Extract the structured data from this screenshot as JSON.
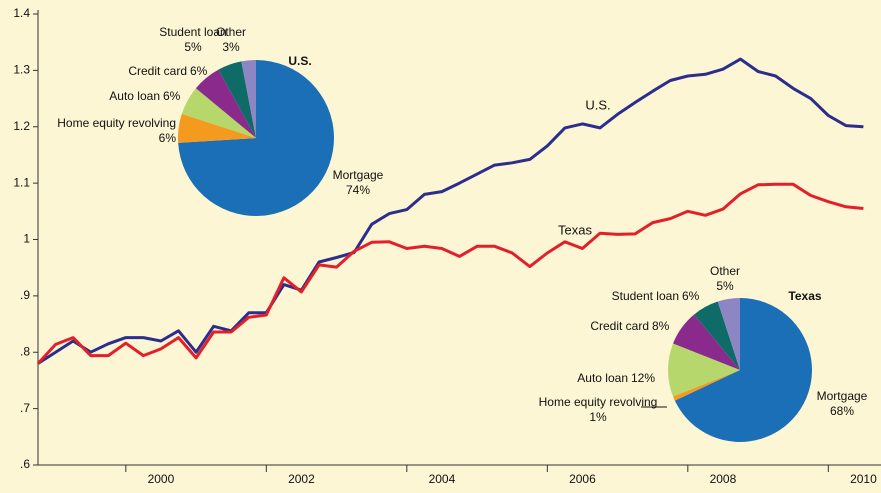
{
  "chart_data": [
    {
      "type": "line",
      "x": [
        1998.75,
        1999,
        1999.25,
        1999.5,
        1999.75,
        2000,
        2000.25,
        2000.5,
        2000.75,
        2001,
        2001.25,
        2001.5,
        2001.75,
        2002,
        2002.25,
        2002.5,
        2002.75,
        2003,
        2003.25,
        2003.5,
        2003.75,
        2004,
        2004.25,
        2004.5,
        2004.75,
        2005,
        2005.25,
        2005.5,
        2005.75,
        2006,
        2006.25,
        2006.5,
        2006.75,
        2007,
        2007.25,
        2007.5,
        2007.75,
        2008,
        2008.25,
        2008.5,
        2008.75,
        2009,
        2009.25,
        2009.5,
        2009.75,
        2010,
        2010.25,
        2010.5
      ],
      "series": [
        {
          "name": "U.S.",
          "color": "#2b2e8c",
          "values": [
            0.78,
            0.8,
            0.82,
            0.8,
            0.815,
            0.826,
            0.826,
            0.82,
            0.838,
            0.8,
            0.846,
            0.838,
            0.87,
            0.87,
            0.92,
            0.91,
            0.96,
            0.968,
            0.977,
            1.027,
            1.046,
            1.053,
            1.08,
            1.085,
            1.1,
            1.116,
            1.132,
            1.136,
            1.142,
            1.166,
            1.198,
            1.205,
            1.198,
            1.222,
            1.243,
            1.263,
            1.282,
            1.29,
            1.293,
            1.302,
            1.32,
            1.298,
            1.29,
            1.268,
            1.25,
            1.22,
            1.202,
            1.2
          ]
        },
        {
          "name": "Texas",
          "color": "#e3202a",
          "values": [
            0.78,
            0.814,
            0.826,
            0.794,
            0.794,
            0.816,
            0.794,
            0.806,
            0.826,
            0.79,
            0.836,
            0.836,
            0.862,
            0.866,
            0.932,
            0.907,
            0.955,
            0.951,
            0.979,
            0.995,
            0.996,
            0.984,
            0.988,
            0.984,
            0.97,
            0.988,
            0.988,
            0.976,
            0.952,
            0.976,
            0.996,
            0.984,
            1.011,
            1.009,
            1.01,
            1.03,
            1.037,
            1.05,
            1.043,
            1.054,
            1.081,
            1.097,
            1.098,
            1.098,
            1.078,
            1.067,
            1.058,
            1.055
          ]
        }
      ],
      "xlim": [
        1998.75,
        2010.75
      ],
      "xticks": [
        2000,
        2002,
        2004,
        2006,
        2008,
        2010
      ],
      "ylim": [
        0.6,
        1.4
      ],
      "yticks": [
        {
          "value": 0.6,
          "label": ".6"
        },
        {
          "value": 0.7,
          "label": ".7"
        },
        {
          "value": 0.8,
          "label": ".8"
        },
        {
          "value": 0.9,
          "label": ".9"
        },
        1,
        1.1,
        1.2,
        1.3,
        1.4
      ]
    },
    {
      "type": "pie",
      "title": "U.S.",
      "categories": [
        "Mortgage",
        "Home equity revolving",
        "Auto loan",
        "Credit card",
        "Student loan",
        "Other"
      ],
      "values": [
        74,
        6,
        6,
        6,
        5,
        3
      ],
      "value_labels": [
        "74%",
        "6%",
        "6%",
        "6%",
        "5%",
        "3%"
      ],
      "colors": [
        "#1b6fb6",
        "#f39a1f",
        "#b5d76c",
        "#8a2a8c",
        "#0e6b68",
        "#8d86c4"
      ]
    },
    {
      "type": "pie",
      "title": "Texas",
      "categories": [
        "Mortgage",
        "Home equity revolving",
        "Auto loan",
        "Credit card",
        "Student loan",
        "Other"
      ],
      "values": [
        68,
        1,
        12,
        8,
        6,
        5
      ],
      "value_labels": [
        "68%",
        "1%",
        "12%",
        "8%",
        "6%",
        "5%"
      ],
      "colors": [
        "#1b6fb6",
        "#f39a1f",
        "#b5d76c",
        "#8a2a8c",
        "#0e6b68",
        "#8d86c4"
      ]
    }
  ]
}
